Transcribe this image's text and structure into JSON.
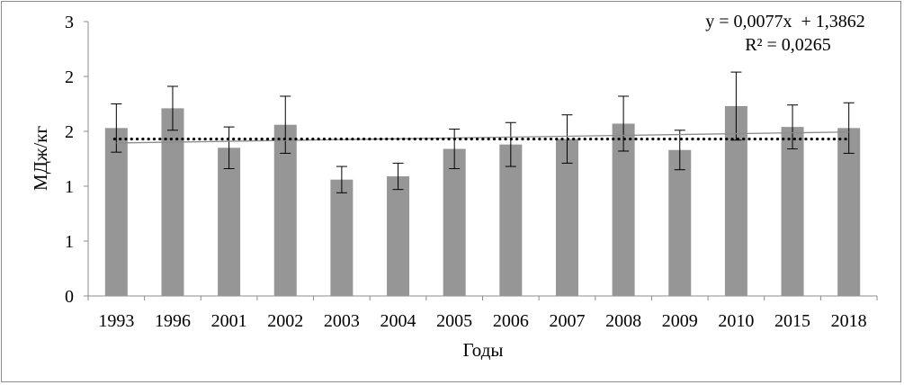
{
  "chart_data": {
    "type": "bar",
    "categories": [
      "1993",
      "1996",
      "2001",
      "2002",
      "2003",
      "2004",
      "2005",
      "2006",
      "2007",
      "2008",
      "2009",
      "2010",
      "2015",
      "2018"
    ],
    "series": [
      {
        "values": [
          1.53,
          1.71,
          1.35,
          1.56,
          1.06,
          1.09,
          1.34,
          1.38,
          1.43,
          1.57,
          1.33,
          1.73,
          1.54,
          1.53
        ],
        "error": [
          0.22,
          0.2,
          0.19,
          0.26,
          0.12,
          0.12,
          0.18,
          0.2,
          0.22,
          0.25,
          0.18,
          0.31,
          0.2,
          0.23
        ],
        "color": "#969696"
      }
    ],
    "trendline": {
      "equation": "y = 0,0077x  + 1,3862",
      "r_squared": "R² = 0,0265",
      "color": "#8c8c8c",
      "slope": 0.0077,
      "intercept": 1.3862
    },
    "mean_line": {
      "value": 1.43,
      "style": "dotted",
      "color": "#000000"
    },
    "ylabel": "МДж/кг",
    "xlabel": "Годы",
    "ylim": [
      0,
      2.5
    ],
    "yticks": [
      0,
      0.5,
      1,
      1.5,
      2,
      2.5
    ],
    "ytick_labels": [
      "0",
      "1",
      "1",
      "2",
      "2",
      "3"
    ],
    "grid": false,
    "legend": "none"
  }
}
